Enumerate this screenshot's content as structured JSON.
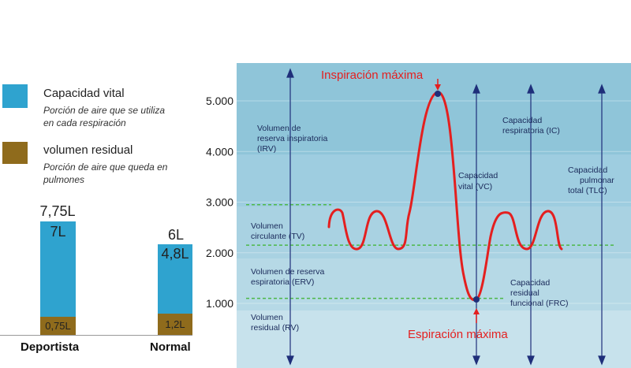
{
  "colors": {
    "vital": "#2fa3cf",
    "residual": "#8f6b1c",
    "panel_top": "#8fc5d9",
    "panel_mid": "#a9d2e2",
    "panel_light": "#c7e2ec",
    "curve": "#e41f1f",
    "arrow": "#1f2f7a",
    "dash": "#4db848",
    "red_label": "#e41f1f"
  },
  "legend": {
    "items": [
      {
        "title": "Capacidad vital",
        "desc1": "Porción de aire que se utiliza",
        "desc2": "en cada respiración"
      },
      {
        "title": "volumen residual",
        "desc1": "Porción de aire que queda en",
        "desc2": "pulmones"
      }
    ]
  },
  "bars": [
    {
      "category": "Deportista",
      "total_label": "7,75L",
      "vital_label": "7L",
      "residual_label": "0,75L"
    },
    {
      "category": "Normal",
      "total_label": "6L",
      "vital_label": "4,8L",
      "residual_label": "1,2L"
    }
  ],
  "chart_data": [
    {
      "type": "bar",
      "stacked": true,
      "categories": [
        "Deportista",
        "Normal"
      ],
      "series": [
        {
          "name": "Capacidad vital",
          "values": [
            7,
            4.8
          ]
        },
        {
          "name": "volumen residual",
          "values": [
            0.75,
            1.2
          ]
        }
      ],
      "totals": [
        7.75,
        6
      ]
    },
    {
      "type": "line",
      "ylim": [
        500,
        5500
      ],
      "yticks": [
        "1.000",
        "2.000",
        "3.000",
        "4.000",
        "5.000"
      ],
      "ytick_values": [
        1000,
        2000,
        3000,
        4000,
        5000
      ],
      "dashed_levels": [
        1100,
        2150,
        2950
      ],
      "series": [
        {
          "x": [
            0,
            0.5,
            1,
            1.5,
            2,
            2.5,
            3,
            3.5,
            3.9,
            4.6,
            5.2,
            5.8,
            6.3,
            6.9,
            7.4,
            8,
            8.6,
            9.2,
            9.8,
            10.2
          ],
          "y": [
            2500,
            2900,
            2150,
            2900,
            2150,
            2400,
            5100,
            2000,
            1100,
            2250,
            2900,
            2150,
            2900,
            2150,
            2900,
            2150,
            2900,
            2150,
            2900,
            2150
          ]
        }
      ],
      "annotations": {
        "top": "Inspiración máxima",
        "bottom": "Espiración máxima",
        "labels": [
          {
            "l1": "Volumen de",
            "l2": "reserva inspiratoria",
            "l3": "(IRV)"
          },
          {
            "l1": "Volumen",
            "l2": "circulante (TV)"
          },
          {
            "l1": "Volumen de reserva",
            "l2": "espiratoria (ERV)"
          },
          {
            "l1": "Volumen",
            "l2": "residual (RV)"
          },
          {
            "l1": "Capacidad",
            "l2": "vital (VC)"
          },
          {
            "l1": "Capacidad",
            "l2": "respiratoria (IC)"
          },
          {
            "l1": "Capacidad",
            "l2": "pulmonar",
            "l3": "total (TLC)"
          },
          {
            "l1": "Capacidad",
            "l2": "residual",
            "l3": "funcional (FRC)"
          }
        ]
      }
    }
  ]
}
